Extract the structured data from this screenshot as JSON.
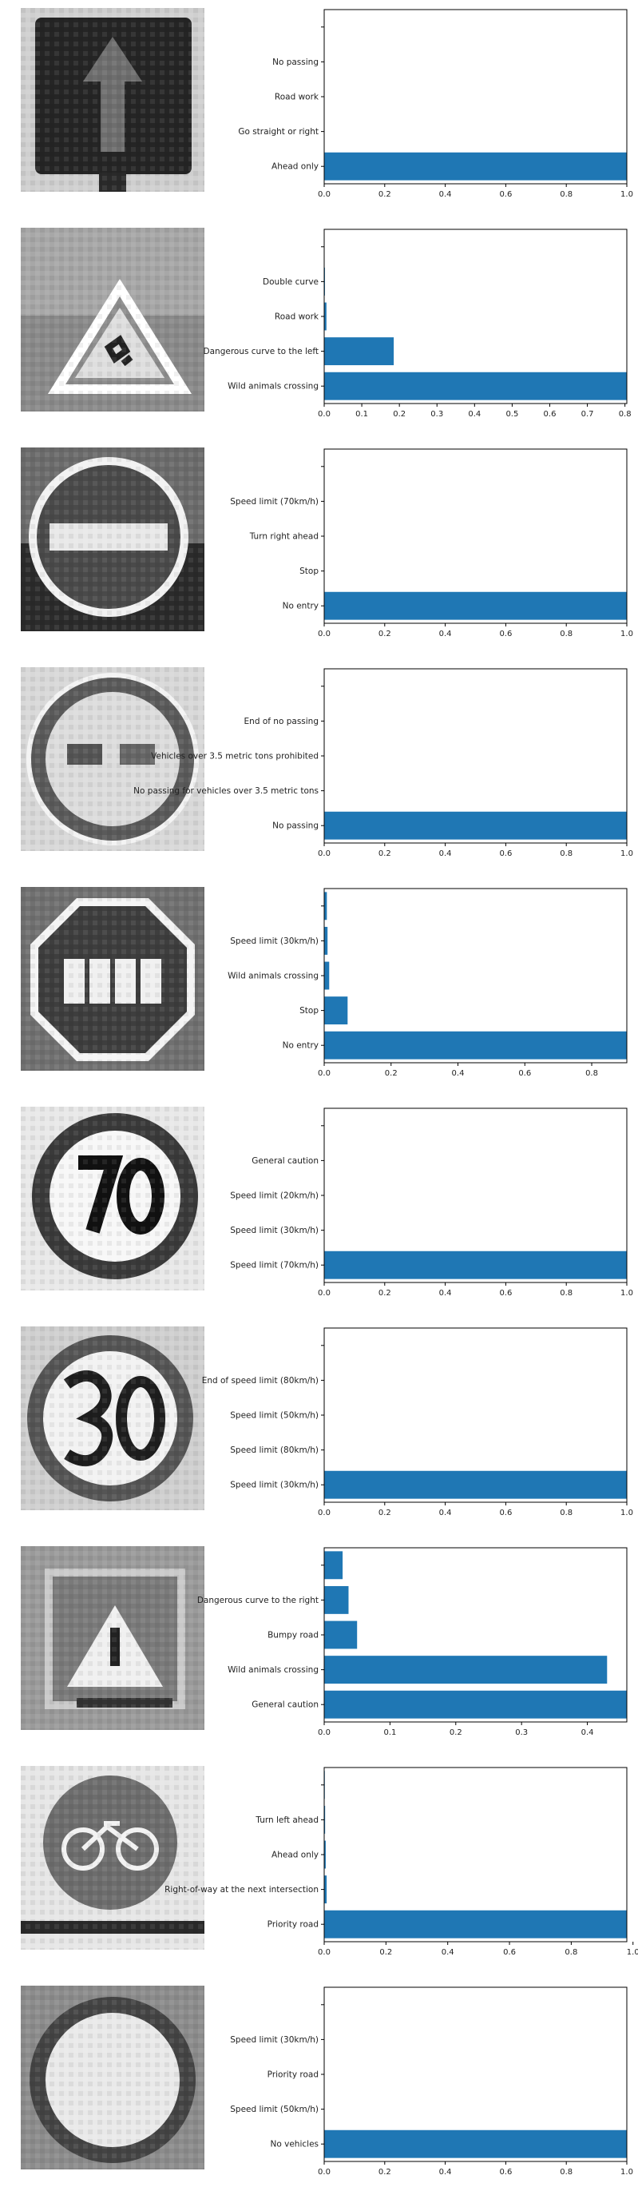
{
  "colors": {
    "bar": "#1f77b4",
    "axis": "#000000",
    "text": "#222222"
  },
  "rows": [
    {
      "sign_icon": "ahead-only-sign",
      "chart_data": {
        "type": "bar",
        "orientation": "horizontal",
        "categories": [
          "Ahead only",
          "Go straight or right",
          "Road work",
          "No passing",
          ""
        ],
        "values": [
          1.0,
          0.0,
          0.0,
          0.0,
          0.0
        ],
        "xlim": [
          0,
          1.0
        ],
        "xticks": [
          "0.0",
          "0.2",
          "0.4",
          "0.6",
          "0.8",
          "1.0"
        ],
        "grid": false
      }
    },
    {
      "sign_icon": "wild-animals-crossing-sign",
      "chart_data": {
        "type": "bar",
        "orientation": "horizontal",
        "categories": [
          "Wild animals crossing",
          "Dangerous curve to the left",
          "Road work",
          "Double curve",
          ""
        ],
        "values": [
          0.805,
          0.185,
          0.006,
          0.002,
          0.001
        ],
        "xlim": [
          0,
          0.805
        ],
        "xticks": [
          "0.0",
          "0.1",
          "0.2",
          "0.3",
          "0.4",
          "0.5",
          "0.6",
          "0.7",
          "0.8"
        ],
        "grid": false
      }
    },
    {
      "sign_icon": "no-entry-sign",
      "chart_data": {
        "type": "bar",
        "orientation": "horizontal",
        "categories": [
          "No entry",
          "Stop",
          "Turn right ahead",
          "Speed limit (70km/h)",
          ""
        ],
        "values": [
          1.0,
          0.0,
          0.0,
          0.0,
          0.0
        ],
        "xlim": [
          0,
          1.0
        ],
        "xticks": [
          "0.0",
          "0.2",
          "0.4",
          "0.6",
          "0.8",
          "1.0"
        ],
        "grid": false
      }
    },
    {
      "sign_icon": "no-passing-sign",
      "chart_data": {
        "type": "bar",
        "orientation": "horizontal",
        "categories": [
          "No passing",
          "No passing for vehicles over 3.5 metric tons",
          "Vehicles over 3.5 metric tons prohibited",
          "End of no passing",
          ""
        ],
        "values": [
          1.0,
          0.0,
          0.0,
          0.0,
          0.0
        ],
        "xlim": [
          0,
          1.0
        ],
        "xticks": [
          "0.0",
          "0.2",
          "0.4",
          "0.6",
          "0.8",
          "1.0"
        ],
        "grid": false
      }
    },
    {
      "sign_icon": "stop-sign",
      "chart_data": {
        "type": "bar",
        "orientation": "horizontal",
        "categories": [
          "No entry",
          "Stop",
          "Wild animals crossing",
          "Speed limit (30km/h)",
          ""
        ],
        "values": [
          0.905,
          0.07,
          0.015,
          0.01,
          0.008
        ],
        "xlim": [
          0,
          0.905
        ],
        "xticks": [
          "0.0",
          "0.2",
          "0.4",
          "0.6",
          "0.8"
        ],
        "grid": false
      }
    },
    {
      "sign_icon": "speed-limit-70-sign",
      "chart_data": {
        "type": "bar",
        "orientation": "horizontal",
        "categories": [
          "Speed limit (70km/h)",
          "Speed limit (30km/h)",
          "Speed limit (20km/h)",
          "General caution",
          ""
        ],
        "values": [
          1.0,
          0.0,
          0.0,
          0.0,
          0.0
        ],
        "xlim": [
          0,
          1.0
        ],
        "xticks": [
          "0.0",
          "0.2",
          "0.4",
          "0.6",
          "0.8",
          "1.0"
        ],
        "grid": false
      }
    },
    {
      "sign_icon": "speed-limit-30-sign",
      "chart_data": {
        "type": "bar",
        "orientation": "horizontal",
        "categories": [
          "Speed limit (30km/h)",
          "Speed limit (80km/h)",
          "Speed limit (50km/h)",
          "End of speed limit (80km/h)",
          ""
        ],
        "values": [
          1.0,
          0.0,
          0.0,
          0.0,
          0.0
        ],
        "xlim": [
          0,
          1.0
        ],
        "xticks": [
          "0.0",
          "0.2",
          "0.4",
          "0.6",
          "0.8",
          "1.0"
        ],
        "grid": false
      }
    },
    {
      "sign_icon": "pedestrians-sign",
      "chart_data": {
        "type": "bar",
        "orientation": "horizontal",
        "categories": [
          "General caution",
          "Wild animals crossing",
          "Bumpy road",
          "Dangerous curve to the right",
          ""
        ],
        "values": [
          0.46,
          0.43,
          0.05,
          0.037,
          0.028
        ],
        "xlim": [
          0,
          0.46
        ],
        "xticks": [
          "0.0",
          "0.1",
          "0.2",
          "0.3",
          "0.4"
        ],
        "grid": false
      }
    },
    {
      "sign_icon": "bicycles-crossing-sign",
      "chart_data": {
        "type": "bar",
        "orientation": "horizontal",
        "categories": [
          "Priority road",
          "Right-of-way at the next intersection",
          "Ahead only",
          "Turn left ahead",
          ""
        ],
        "values": [
          0.98,
          0.008,
          0.005,
          0.003,
          0.002
        ],
        "xlim": [
          0,
          0.98
        ],
        "xticks": [
          "0.0",
          "0.2",
          "0.4",
          "0.6",
          "0.8",
          "1.0"
        ],
        "grid": false
      }
    },
    {
      "sign_icon": "no-vehicles-sign",
      "chart_data": {
        "type": "bar",
        "orientation": "horizontal",
        "categories": [
          "No vehicles",
          "Speed limit (50km/h)",
          "Priority road",
          "Speed limit (30km/h)",
          ""
        ],
        "values": [
          1.0,
          0.0,
          0.0,
          0.0,
          0.0
        ],
        "xlim": [
          0,
          1.0
        ],
        "xticks": [
          "0.0",
          "0.2",
          "0.4",
          "0.6",
          "0.8",
          "1.0"
        ],
        "grid": false
      }
    }
  ]
}
